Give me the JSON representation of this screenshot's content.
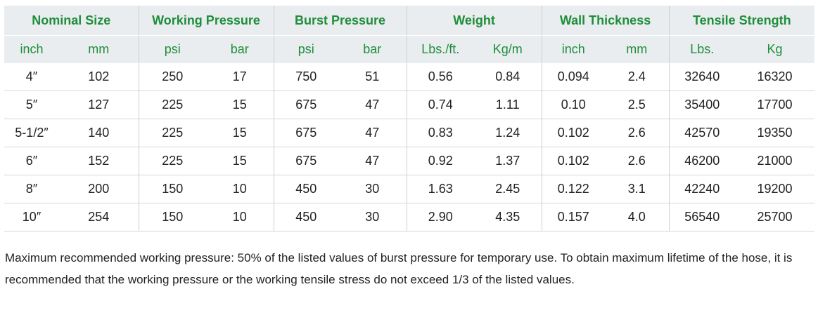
{
  "table": {
    "groups": [
      "Nominal Size",
      "Working Pressure",
      "Burst Pressure",
      "Weight",
      "Wall Thickness",
      "Tensile Strength"
    ],
    "units": [
      "inch",
      "mm",
      "psi",
      "bar",
      "psi",
      "bar",
      "Lbs./ft.",
      "Kg/m",
      "inch",
      "mm",
      "Lbs.",
      "Kg"
    ],
    "rows": [
      [
        "4″",
        "102",
        "250",
        "17",
        "750",
        "51",
        "0.56",
        "0.84",
        "0.094",
        "2.4",
        "32640",
        "16320"
      ],
      [
        "5″",
        "127",
        "225",
        "15",
        "675",
        "47",
        "0.74",
        "1.11",
        "0.10",
        "2.5",
        "35400",
        "17700"
      ],
      [
        "5-1/2″",
        "140",
        "225",
        "15",
        "675",
        "47",
        "0.83",
        "1.24",
        "0.102",
        "2.6",
        "42570",
        "19350"
      ],
      [
        "6″",
        "152",
        "225",
        "15",
        "675",
        "47",
        "0.92",
        "1.37",
        "0.102",
        "2.6",
        "46200",
        "21000"
      ],
      [
        "8″",
        "200",
        "150",
        "10",
        "450",
        "30",
        "1.63",
        "2.45",
        "0.122",
        "3.1",
        "42240",
        "19200"
      ],
      [
        "10″",
        "254",
        "150",
        "10",
        "450",
        "30",
        "2.90",
        "4.35",
        "0.157",
        "4.0",
        "56540",
        "25700"
      ]
    ]
  },
  "note": "Maximum recommended working pressure: 50% of the listed values of burst pressure for temporary use. To obtain maximum lifetime of  the hose, it is recommended that the working pressure or the working tensile stress do not exceed 1/3 of the listed values."
}
